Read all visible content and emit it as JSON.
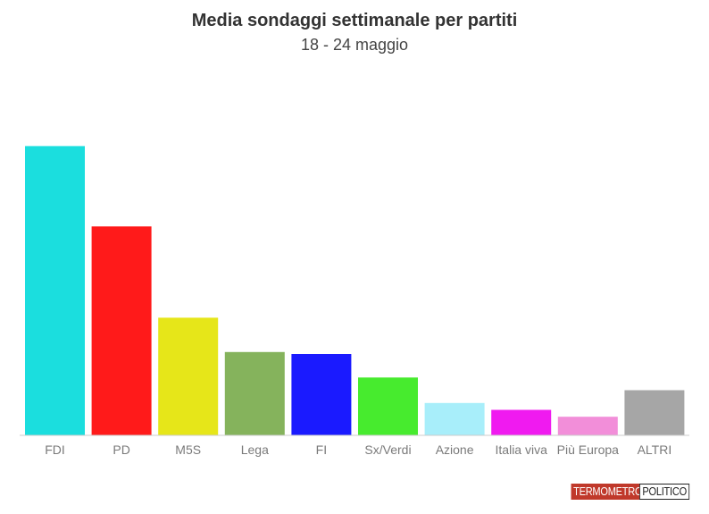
{
  "chart_data": {
    "type": "bar",
    "title": "Media sondaggi settimanale per partiti",
    "subtitle": "18 - 24 maggio",
    "categories": [
      "FDI",
      "PD",
      "M5S",
      "Lega",
      "FI",
      "Sx/Verdi",
      "Azione",
      "Italia viva",
      "Più Europa",
      "ALTRI"
    ],
    "values": [
      29.5,
      21.3,
      12.0,
      8.5,
      8.3,
      5.9,
      3.3,
      2.6,
      1.9,
      4.6
    ],
    "colors": [
      "#1bdede",
      "#ff1a1a",
      "#e6e619",
      "#85b35c",
      "#1a1aff",
      "#47eb2e",
      "#a8eefa",
      "#f01af0",
      "#f28ed9",
      "#a6a6a6"
    ],
    "ylim": [
      0,
      33
    ],
    "xlabel": "",
    "ylabel": "",
    "grid": false,
    "legend": "none"
  },
  "logo": {
    "left": "TERMOMETRO",
    "right": "POLITICO"
  }
}
